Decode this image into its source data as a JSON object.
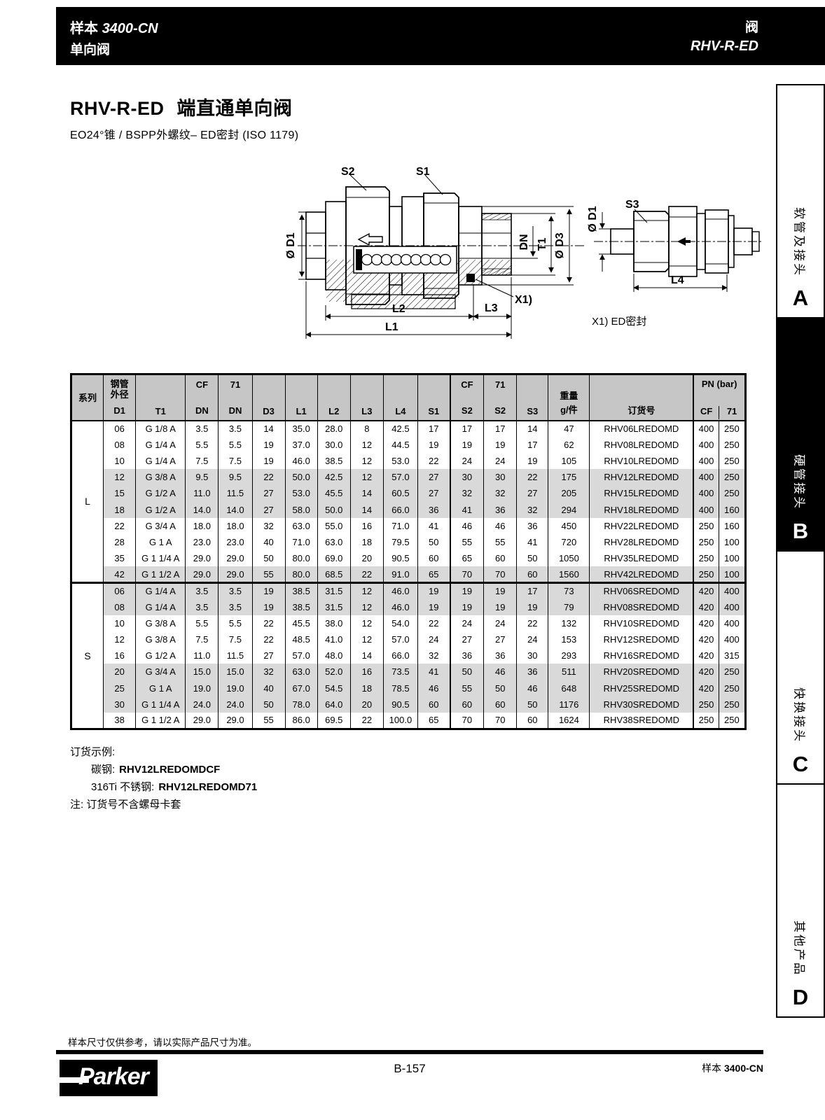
{
  "header_bar": {
    "catalog_label": "样本",
    "catalog_num": "3400-CN",
    "left_sub": "单向阀",
    "right_top": "阀",
    "right_model": "RHV-R-ED"
  },
  "title_block": {
    "model": "RHV-R-ED",
    "name": "端直通单向阀",
    "subtitle": "EO24°锥 / BSPP外螺纹– ED密封 (ISO 1179)"
  },
  "diagram": {
    "labels": {
      "s1": "S1",
      "s2": "S2",
      "s3": "S3",
      "d1": "Ø D1",
      "dn": "DN",
      "t1": "T1",
      "d3": "Ø D3",
      "x1": "X1)",
      "l1": "L1",
      "l2": "L2",
      "l3": "L3",
      "l4": "L4"
    },
    "caption": "X1) ED密封"
  },
  "table": {
    "headers": {
      "series": "系列",
      "tube_od": "钢管外径",
      "d1": "D1",
      "t1": "T1",
      "cf": "CF",
      "v71": "71",
      "dn": "DN",
      "d3": "D3",
      "l1": "L1",
      "l2": "L2",
      "l3": "L3",
      "l4": "L4",
      "s1": "S1",
      "s2": "S2",
      "s3": "S3",
      "weight1": "重量",
      "weight2": "g/件",
      "order": "订货号",
      "pn": "PN (bar)"
    },
    "series": [
      {
        "name": "L",
        "rows": [
          [
            "06",
            "G 1/8 A",
            "3.5",
            "3.5",
            "14",
            "35.0",
            "28.0",
            "8",
            "42.5",
            "17",
            "17",
            "17",
            "14",
            "47",
            "RHV06LREDOMD",
            "400",
            "250"
          ],
          [
            "08",
            "G 1/4 A",
            "5.5",
            "5.5",
            "19",
            "37.0",
            "30.0",
            "12",
            "44.5",
            "19",
            "19",
            "19",
            "17",
            "62",
            "RHV08LREDOMD",
            "400",
            "250"
          ],
          [
            "10",
            "G 1/4 A",
            "7.5",
            "7.5",
            "19",
            "46.0",
            "38.5",
            "12",
            "53.0",
            "22",
            "24",
            "24",
            "19",
            "105",
            "RHV10LREDOMD",
            "400",
            "250"
          ],
          [
            "12",
            "G 3/8 A",
            "9.5",
            "9.5",
            "22",
            "50.0",
            "42.5",
            "12",
            "57.0",
            "27",
            "30",
            "30",
            "22",
            "175",
            "RHV12LREDOMD",
            "400",
            "250"
          ],
          [
            "15",
            "G 1/2 A",
            "11.0",
            "11.5",
            "27",
            "53.0",
            "45.5",
            "14",
            "60.5",
            "27",
            "32",
            "32",
            "27",
            "205",
            "RHV15LREDOMD",
            "400",
            "250"
          ],
          [
            "18",
            "G 1/2 A",
            "14.0",
            "14.0",
            "27",
            "58.0",
            "50.0",
            "14",
            "66.0",
            "36",
            "41",
            "36",
            "32",
            "294",
            "RHV18LREDOMD",
            "400",
            "160"
          ],
          [
            "22",
            "G 3/4 A",
            "18.0",
            "18.0",
            "32",
            "63.0",
            "55.0",
            "16",
            "71.0",
            "41",
            "46",
            "46",
            "36",
            "450",
            "RHV22LREDOMD",
            "250",
            "160"
          ],
          [
            "28",
            "G 1 A",
            "23.0",
            "23.0",
            "40",
            "71.0",
            "63.0",
            "18",
            "79.5",
            "50",
            "55",
            "55",
            "41",
            "720",
            "RHV28LREDOMD",
            "250",
            "100"
          ],
          [
            "35",
            "G 1 1/4 A",
            "29.0",
            "29.0",
            "50",
            "80.0",
            "69.0",
            "20",
            "90.5",
            "60",
            "65",
            "60",
            "50",
            "1050",
            "RHV35LREDOMD",
            "250",
            "100"
          ],
          [
            "42",
            "G 1 1/2 A",
            "29.0",
            "29.0",
            "55",
            "80.0",
            "68.5",
            "22",
            "91.0",
            "65",
            "70",
            "70",
            "60",
            "1560",
            "RHV42LREDOMD",
            "250",
            "100"
          ]
        ]
      },
      {
        "name": "S",
        "rows": [
          [
            "06",
            "G 1/4 A",
            "3.5",
            "3.5",
            "19",
            "38.5",
            "31.5",
            "12",
            "46.0",
            "19",
            "19",
            "19",
            "17",
            "73",
            "RHV06SREDOMD",
            "420",
            "400"
          ],
          [
            "08",
            "G 1/4 A",
            "3.5",
            "3.5",
            "19",
            "38.5",
            "31.5",
            "12",
            "46.0",
            "19",
            "19",
            "19",
            "19",
            "79",
            "RHV08SREDOMD",
            "420",
            "400"
          ],
          [
            "10",
            "G 3/8 A",
            "5.5",
            "5.5",
            "22",
            "45.5",
            "38.0",
            "12",
            "54.0",
            "22",
            "24",
            "24",
            "22",
            "132",
            "RHV10SREDOMD",
            "420",
            "400"
          ],
          [
            "12",
            "G 3/8 A",
            "7.5",
            "7.5",
            "22",
            "48.5",
            "41.0",
            "12",
            "57.0",
            "24",
            "27",
            "27",
            "24",
            "153",
            "RHV12SREDOMD",
            "420",
            "400"
          ],
          [
            "16",
            "G 1/2 A",
            "11.0",
            "11.5",
            "27",
            "57.0",
            "48.0",
            "14",
            "66.0",
            "32",
            "36",
            "36",
            "30",
            "293",
            "RHV16SREDOMD",
            "420",
            "315"
          ],
          [
            "20",
            "G 3/4 A",
            "15.0",
            "15.0",
            "32",
            "63.0",
            "52.0",
            "16",
            "73.5",
            "41",
            "50",
            "46",
            "36",
            "511",
            "RHV20SREDOMD",
            "420",
            "250"
          ],
          [
            "25",
            "G 1 A",
            "19.0",
            "19.0",
            "40",
            "67.0",
            "54.5",
            "18",
            "78.5",
            "46",
            "55",
            "50",
            "46",
            "648",
            "RHV25SREDOMD",
            "420",
            "250"
          ],
          [
            "30",
            "G 1 1/4 A",
            "24.0",
            "24.0",
            "50",
            "78.0",
            "64.0",
            "20",
            "90.5",
            "60",
            "60",
            "60",
            "50",
            "1176",
            "RHV30SREDOMD",
            "250",
            "250"
          ],
          [
            "38",
            "G 1 1/2 A",
            "29.0",
            "29.0",
            "55",
            "86.0",
            "69.5",
            "22",
            "100.0",
            "65",
            "70",
            "70",
            "60",
            "1624",
            "RHV38SREDOMD",
            "250",
            "250"
          ]
        ]
      }
    ]
  },
  "notes": {
    "example_title": "订货示例:",
    "examples": [
      {
        "material": "碳钢:",
        "code": "RHV12LREDOMDCF"
      },
      {
        "material": "316Ti 不锈钢:",
        "code": "RHV12LREDOMD71"
      }
    ],
    "remark": "注: 订货号不含螺母卡套"
  },
  "sidebar": {
    "tabs": [
      {
        "letter": "A",
        "label": "软管及接头",
        "active": false
      },
      {
        "letter": "B",
        "label": "硬管接头",
        "active": true
      },
      {
        "letter": "C",
        "label": "快换接头",
        "active": false
      },
      {
        "letter": "D",
        "label": "其他产品",
        "active": false
      }
    ]
  },
  "footer": {
    "disclaimer": "样本尺寸仅供参考，请以实际产品尺寸为准。",
    "page": "B-157",
    "catalog_label": "样本",
    "catalog_num": "3400-CN",
    "brand": "Parker"
  }
}
